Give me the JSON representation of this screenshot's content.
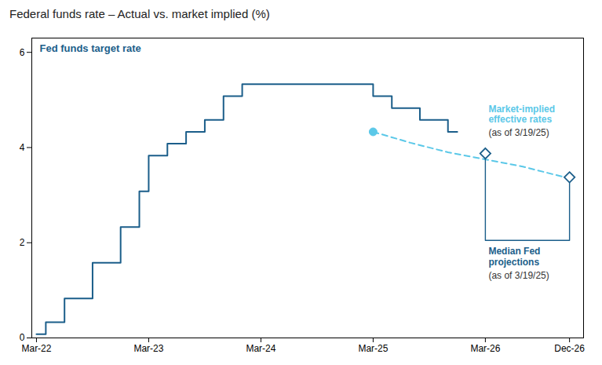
{
  "chart_data": {
    "type": "line",
    "title": "Federal funds rate – Actual vs. market implied (%)",
    "xlim": [
      -0.5,
      58.5
    ],
    "xticks": [
      {
        "value": 0,
        "label": "Mar-22"
      },
      {
        "value": 12,
        "label": "Mar-23"
      },
      {
        "value": 24,
        "label": "Mar-24"
      },
      {
        "value": 36,
        "label": "Mar-25"
      },
      {
        "value": 48,
        "label": "Mar-26"
      },
      {
        "value": 57,
        "label": "Dec-26"
      }
    ],
    "ylim": [
      0,
      6.3
    ],
    "yticks": [
      0,
      2,
      4,
      6
    ],
    "grid": false,
    "series": [
      {
        "name": "Fed funds target rate",
        "type": "line",
        "line_style": "solid",
        "color": "#1b5e8a",
        "x": [
          0,
          1,
          1,
          3,
          3,
          6,
          6,
          9,
          9,
          11,
          11,
          12,
          12,
          14,
          14,
          16,
          16,
          18,
          18,
          20,
          20,
          22,
          22,
          36,
          36,
          38,
          38,
          41,
          41,
          44,
          44,
          45
        ],
        "values": [
          0.08,
          0.08,
          0.33,
          0.33,
          0.83,
          0.83,
          1.58,
          1.58,
          2.33,
          2.33,
          3.08,
          3.08,
          3.83,
          3.83,
          4.08,
          4.08,
          4.33,
          4.33,
          4.58,
          4.58,
          5.08,
          5.08,
          5.33,
          5.33,
          5.08,
          5.08,
          4.83,
          4.83,
          4.58,
          4.58,
          4.33,
          4.33
        ]
      },
      {
        "type": "scatter",
        "marker": "circle",
        "color": "#5bc8e8",
        "x": [
          36
        ],
        "values": [
          4.33
        ]
      },
      {
        "name": "Market-implied\neffective rates",
        "type": "line",
        "line_style": "dashed",
        "color": "#5bc8e8",
        "x": [
          36,
          40,
          44,
          48,
          52,
          57
        ],
        "values": [
          4.33,
          4.1,
          3.9,
          3.75,
          3.6,
          3.35
        ]
      },
      {
        "name": "Median Fed\nprojections",
        "type": "scatter",
        "marker": "diamond",
        "color": "#1b5e8a",
        "x": [
          48,
          57
        ],
        "values": [
          3.875,
          3.375
        ]
      },
      {
        "type": "line",
        "line_style": "solid",
        "color": "#1b5e8a",
        "x": [
          48,
          48,
          57,
          57
        ],
        "values": [
          3.775,
          2.05,
          2.05,
          3.275
        ]
      }
    ],
    "annotations": [
      {
        "text": "(as of 3/19/25)",
        "series": "Market-implied\neffective rates"
      },
      {
        "text": "(as of 3/19/25)",
        "series": "Median Fed\nprojections"
      }
    ]
  }
}
